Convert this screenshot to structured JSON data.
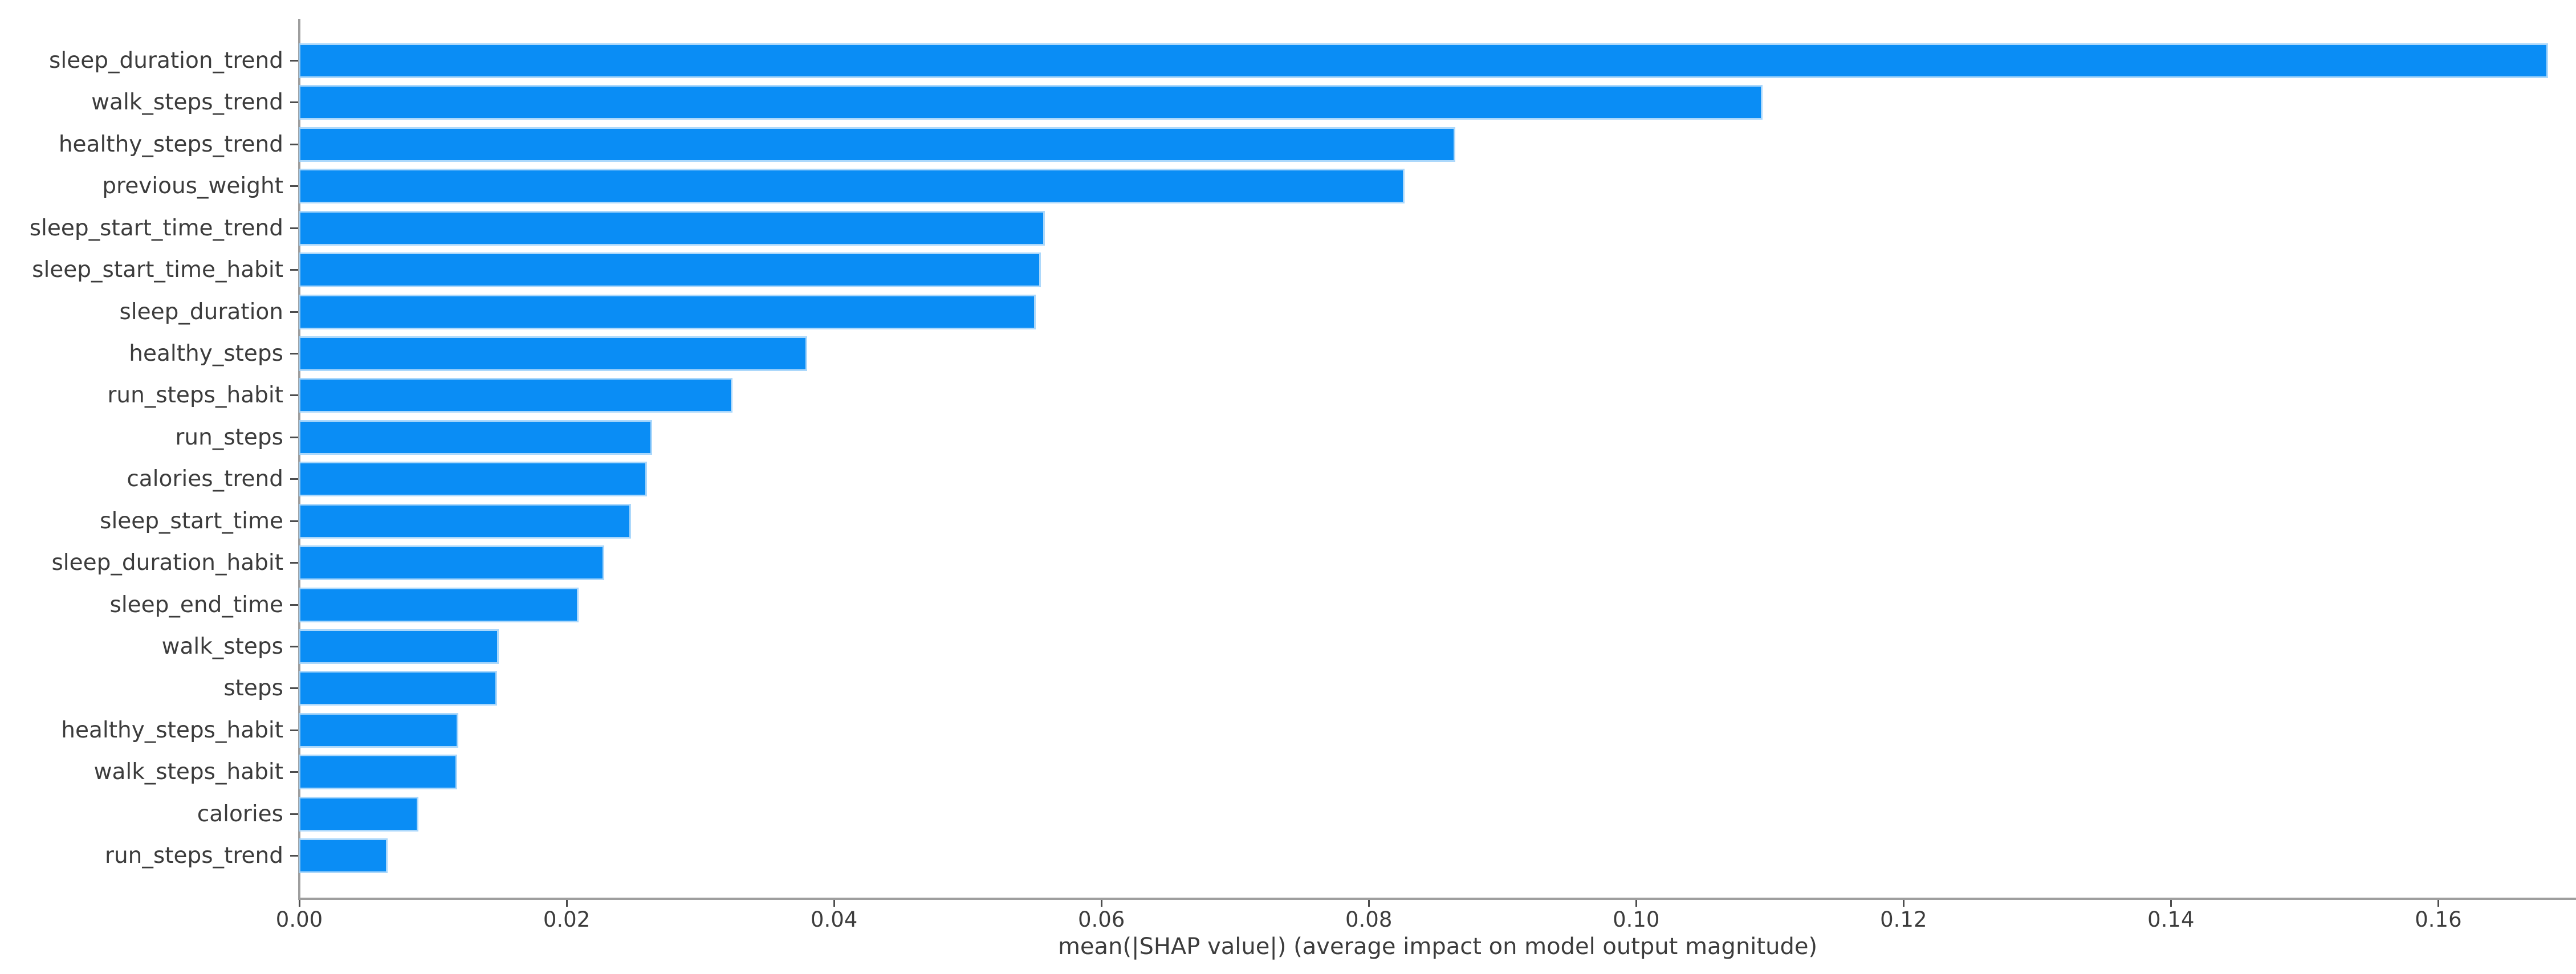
{
  "colors": {
    "bar": "#0a8df5",
    "bar_halo": "#9ed1fa",
    "spine": "#9e9e9e",
    "tick_mark": "#4d4d4d",
    "text": "#3c3c3c",
    "background": "#ffffff"
  },
  "chart_data": {
    "type": "bar",
    "orientation": "horizontal",
    "title": "",
    "xlabel": "mean(|SHAP value|) (average impact on model output magnitude)",
    "ylabel": "",
    "grid": false,
    "legend_position": "none",
    "bar_color": "#0a8df5",
    "xlim": [
      0,
      0.1703
    ],
    "xticks": [
      {
        "value": 0.0,
        "label": "0.00"
      },
      {
        "value": 0.02,
        "label": "0.02"
      },
      {
        "value": 0.04,
        "label": "0.04"
      },
      {
        "value": 0.06,
        "label": "0.06"
      },
      {
        "value": 0.08,
        "label": "0.08"
      },
      {
        "value": 0.1,
        "label": "0.10"
      },
      {
        "value": 0.12,
        "label": "0.12"
      },
      {
        "value": 0.14,
        "label": "0.14"
      },
      {
        "value": 0.16,
        "label": "0.16"
      }
    ],
    "categories": [
      "sleep_duration_trend",
      "walk_steps_trend",
      "healthy_steps_trend",
      "previous_weight",
      "sleep_start_time_trend",
      "sleep_start_time_habit",
      "sleep_duration",
      "healthy_steps",
      "run_steps_habit",
      "run_steps",
      "calories_trend",
      "sleep_start_time",
      "sleep_duration_habit",
      "sleep_end_time",
      "walk_steps",
      "steps",
      "healthy_steps_habit",
      "walk_steps_habit",
      "calories",
      "run_steps_trend"
    ],
    "values": [
      0.1681,
      0.1093,
      0.0863,
      0.0825,
      0.0556,
      0.0553,
      0.0549,
      0.0378,
      0.0322,
      0.0262,
      0.0258,
      0.0246,
      0.0226,
      0.0207,
      0.0147,
      0.0146,
      0.0117,
      0.0116,
      0.0087,
      0.0064
    ]
  }
}
